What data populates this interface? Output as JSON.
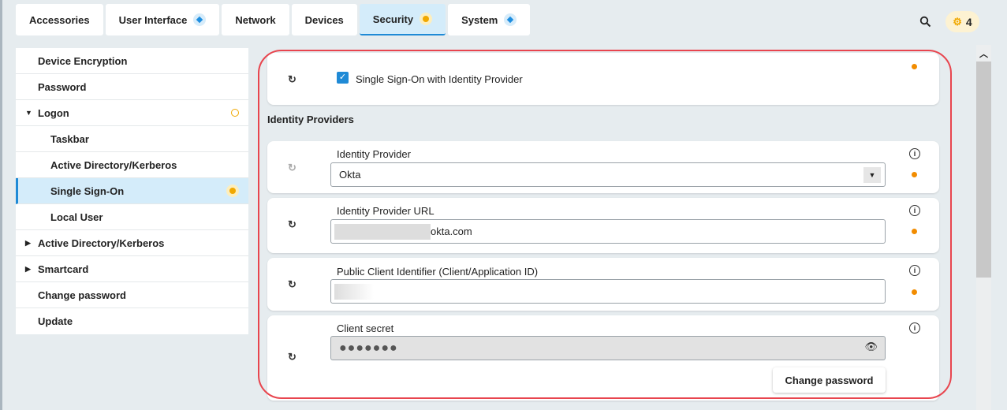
{
  "tabs": [
    {
      "label": "Accessories",
      "indicator": ""
    },
    {
      "label": "User Interface",
      "indicator": "diamond"
    },
    {
      "label": "Network",
      "indicator": ""
    },
    {
      "label": "Devices",
      "indicator": ""
    },
    {
      "label": "Security",
      "indicator": "dot",
      "active": true
    },
    {
      "label": "System",
      "indicator": "diamond"
    }
  ],
  "header": {
    "search_icon": "search-icon",
    "badge_icon": "gear-icon",
    "badge_count": "4"
  },
  "sidebar": {
    "items": [
      {
        "label": "Device Encryption"
      },
      {
        "label": "Password"
      },
      {
        "label": "Logon",
        "expanded": true,
        "status": "ring"
      },
      {
        "label": "Taskbar"
      },
      {
        "label": "Active Directory/Kerberos"
      },
      {
        "label": "Single Sign-On",
        "selected": true,
        "status": "dot"
      },
      {
        "label": "Local User"
      },
      {
        "label": "Active Directory/Kerberos",
        "collapsed": true
      },
      {
        "label": "Smartcard",
        "collapsed": true
      },
      {
        "label": "Change password"
      },
      {
        "label": "Update"
      }
    ]
  },
  "main": {
    "sso_checkbox": {
      "label": "Single Sign-On with Identity Provider",
      "checked": true
    },
    "section_title": "Identity Providers",
    "identity_provider": {
      "label": "Identity Provider",
      "value": "Okta"
    },
    "idp_url": {
      "label": "Identity Provider URL",
      "value": "okta.com"
    },
    "client_id": {
      "label": "Public Client Identifier (Client/Application ID)",
      "value": ""
    },
    "client_secret": {
      "label": "Client secret",
      "value": "●●●●●●●"
    },
    "change_password_label": "Change password"
  },
  "colors": {
    "accent": "#1f8ad6",
    "status": "#f28c00",
    "highlight": "#e8454e"
  }
}
